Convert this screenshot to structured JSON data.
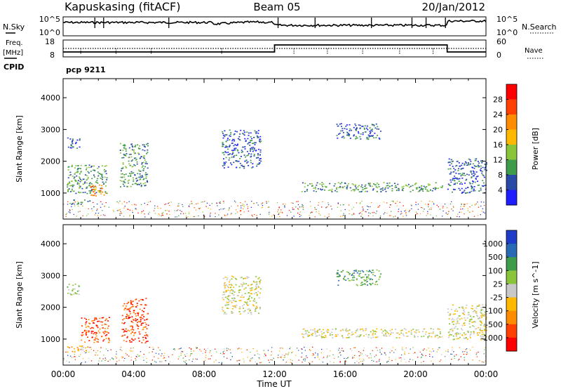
{
  "header": {
    "station": "Kapuskasing (fitACF)",
    "beam": "Beam 05",
    "date": "20/Jan/2012"
  },
  "noise_panel": {
    "left_label": "N.Sky",
    "right_label": "N.Search",
    "left_ticks": [
      "10^5",
      "10^0"
    ],
    "right_ticks": [
      "10^5",
      "10^0"
    ]
  },
  "freq_panel": {
    "left_label_top": "Freq.",
    "left_label_units": "[MHz]",
    "left_ticks": [
      "18",
      "8"
    ],
    "right_label": "Nave",
    "right_ticks": [
      "60",
      "0"
    ]
  },
  "cpid_label": "CPID",
  "program_label": "pcp 9211",
  "chart_data": [
    {
      "type": "heatmap",
      "name": "power",
      "ylabel": "Slant Range [km]",
      "ylim": [
        180,
        4600
      ],
      "y_ticks": [
        "1000",
        "2000",
        "3000",
        "4000"
      ],
      "xlim_hours": [
        0,
        24
      ],
      "x_ticks": [
        "00:00",
        "04:00",
        "08:00",
        "12:00",
        "16:00",
        "20:00",
        "00:00"
      ],
      "colorbar_label": "Power [dB]",
      "colorbar_ticks": [
        "28",
        "24",
        "20",
        "16",
        "12",
        "8",
        "4"
      ],
      "colorbar_colors": [
        "#ff0000",
        "#ff4000",
        "#ff8c00",
        "#ffb800",
        "#8ac43a",
        "#3e9b4a",
        "#2a4aa8",
        "#1e1eff"
      ],
      "echo_regions": [
        {
          "t0": 0.2,
          "t1": 1.0,
          "r0": 2400,
          "r1": 2750,
          "level": 6
        },
        {
          "t0": 0.2,
          "t1": 2.5,
          "r0": 1000,
          "r1": 1900,
          "level": 5
        },
        {
          "t0": 1.5,
          "t1": 2.4,
          "r0": 900,
          "r1": 1300,
          "level": 2
        },
        {
          "t0": 0.3,
          "t1": 1.5,
          "r0": 650,
          "r1": 800,
          "level": 5
        },
        {
          "t0": 3.2,
          "t1": 4.8,
          "r0": 1200,
          "r1": 2600,
          "level": 5
        },
        {
          "t0": 9.0,
          "t1": 11.2,
          "r0": 1800,
          "r1": 3000,
          "level": 6
        },
        {
          "t0": 13.5,
          "t1": 21.5,
          "r0": 1050,
          "r1": 1350,
          "level": 5
        },
        {
          "t0": 15.5,
          "t1": 18.0,
          "r0": 2700,
          "r1": 3200,
          "level": 6
        },
        {
          "t0": 21.8,
          "t1": 24.0,
          "r0": 1000,
          "r1": 2100,
          "level": 6
        }
      ]
    },
    {
      "type": "heatmap",
      "name": "velocity",
      "ylabel": "Slant Range [km]",
      "ylim": [
        180,
        4600
      ],
      "y_ticks": [
        "1000",
        "2000",
        "3000",
        "4000"
      ],
      "xlim_hours": [
        0,
        24
      ],
      "x_ticks": [
        "00:00",
        "04:00",
        "08:00",
        "12:00",
        "16:00",
        "20:00",
        "00:00"
      ],
      "xlabel": "Time UT",
      "colorbar_label": "Velocity [m s^-1]",
      "colorbar_ticks": [
        "1000",
        "500",
        "100",
        "25",
        "-25",
        "-100",
        "-500",
        "-1000"
      ],
      "colorbar_colors": [
        "#1e3cc8",
        "#2a6ab4",
        "#3e9b4a",
        "#8ac43a",
        "#c8c8c8",
        "#ffb800",
        "#ff8c00",
        "#ff4000",
        "#ff0000"
      ],
      "echo_regions": [
        {
          "t0": 0.2,
          "t1": 1.0,
          "r0": 2400,
          "r1": 2750,
          "level": 3
        },
        {
          "t0": 1.0,
          "t1": 2.6,
          "r0": 900,
          "r1": 1700,
          "level": 7
        },
        {
          "t0": 0.2,
          "t1": 1.5,
          "r0": 600,
          "r1": 800,
          "level": 5
        },
        {
          "t0": 3.3,
          "t1": 4.8,
          "r0": 900,
          "r1": 2300,
          "level": 7
        },
        {
          "t0": 9.0,
          "t1": 11.2,
          "r0": 1800,
          "r1": 3000,
          "level": 4
        },
        {
          "t0": 13.5,
          "t1": 21.5,
          "r0": 1050,
          "r1": 1350,
          "level": 4
        },
        {
          "t0": 15.5,
          "t1": 18.0,
          "r0": 2700,
          "r1": 3200,
          "level": 2
        },
        {
          "t0": 21.8,
          "t1": 24.0,
          "r0": 1000,
          "r1": 2100,
          "level": 4
        }
      ]
    }
  ]
}
